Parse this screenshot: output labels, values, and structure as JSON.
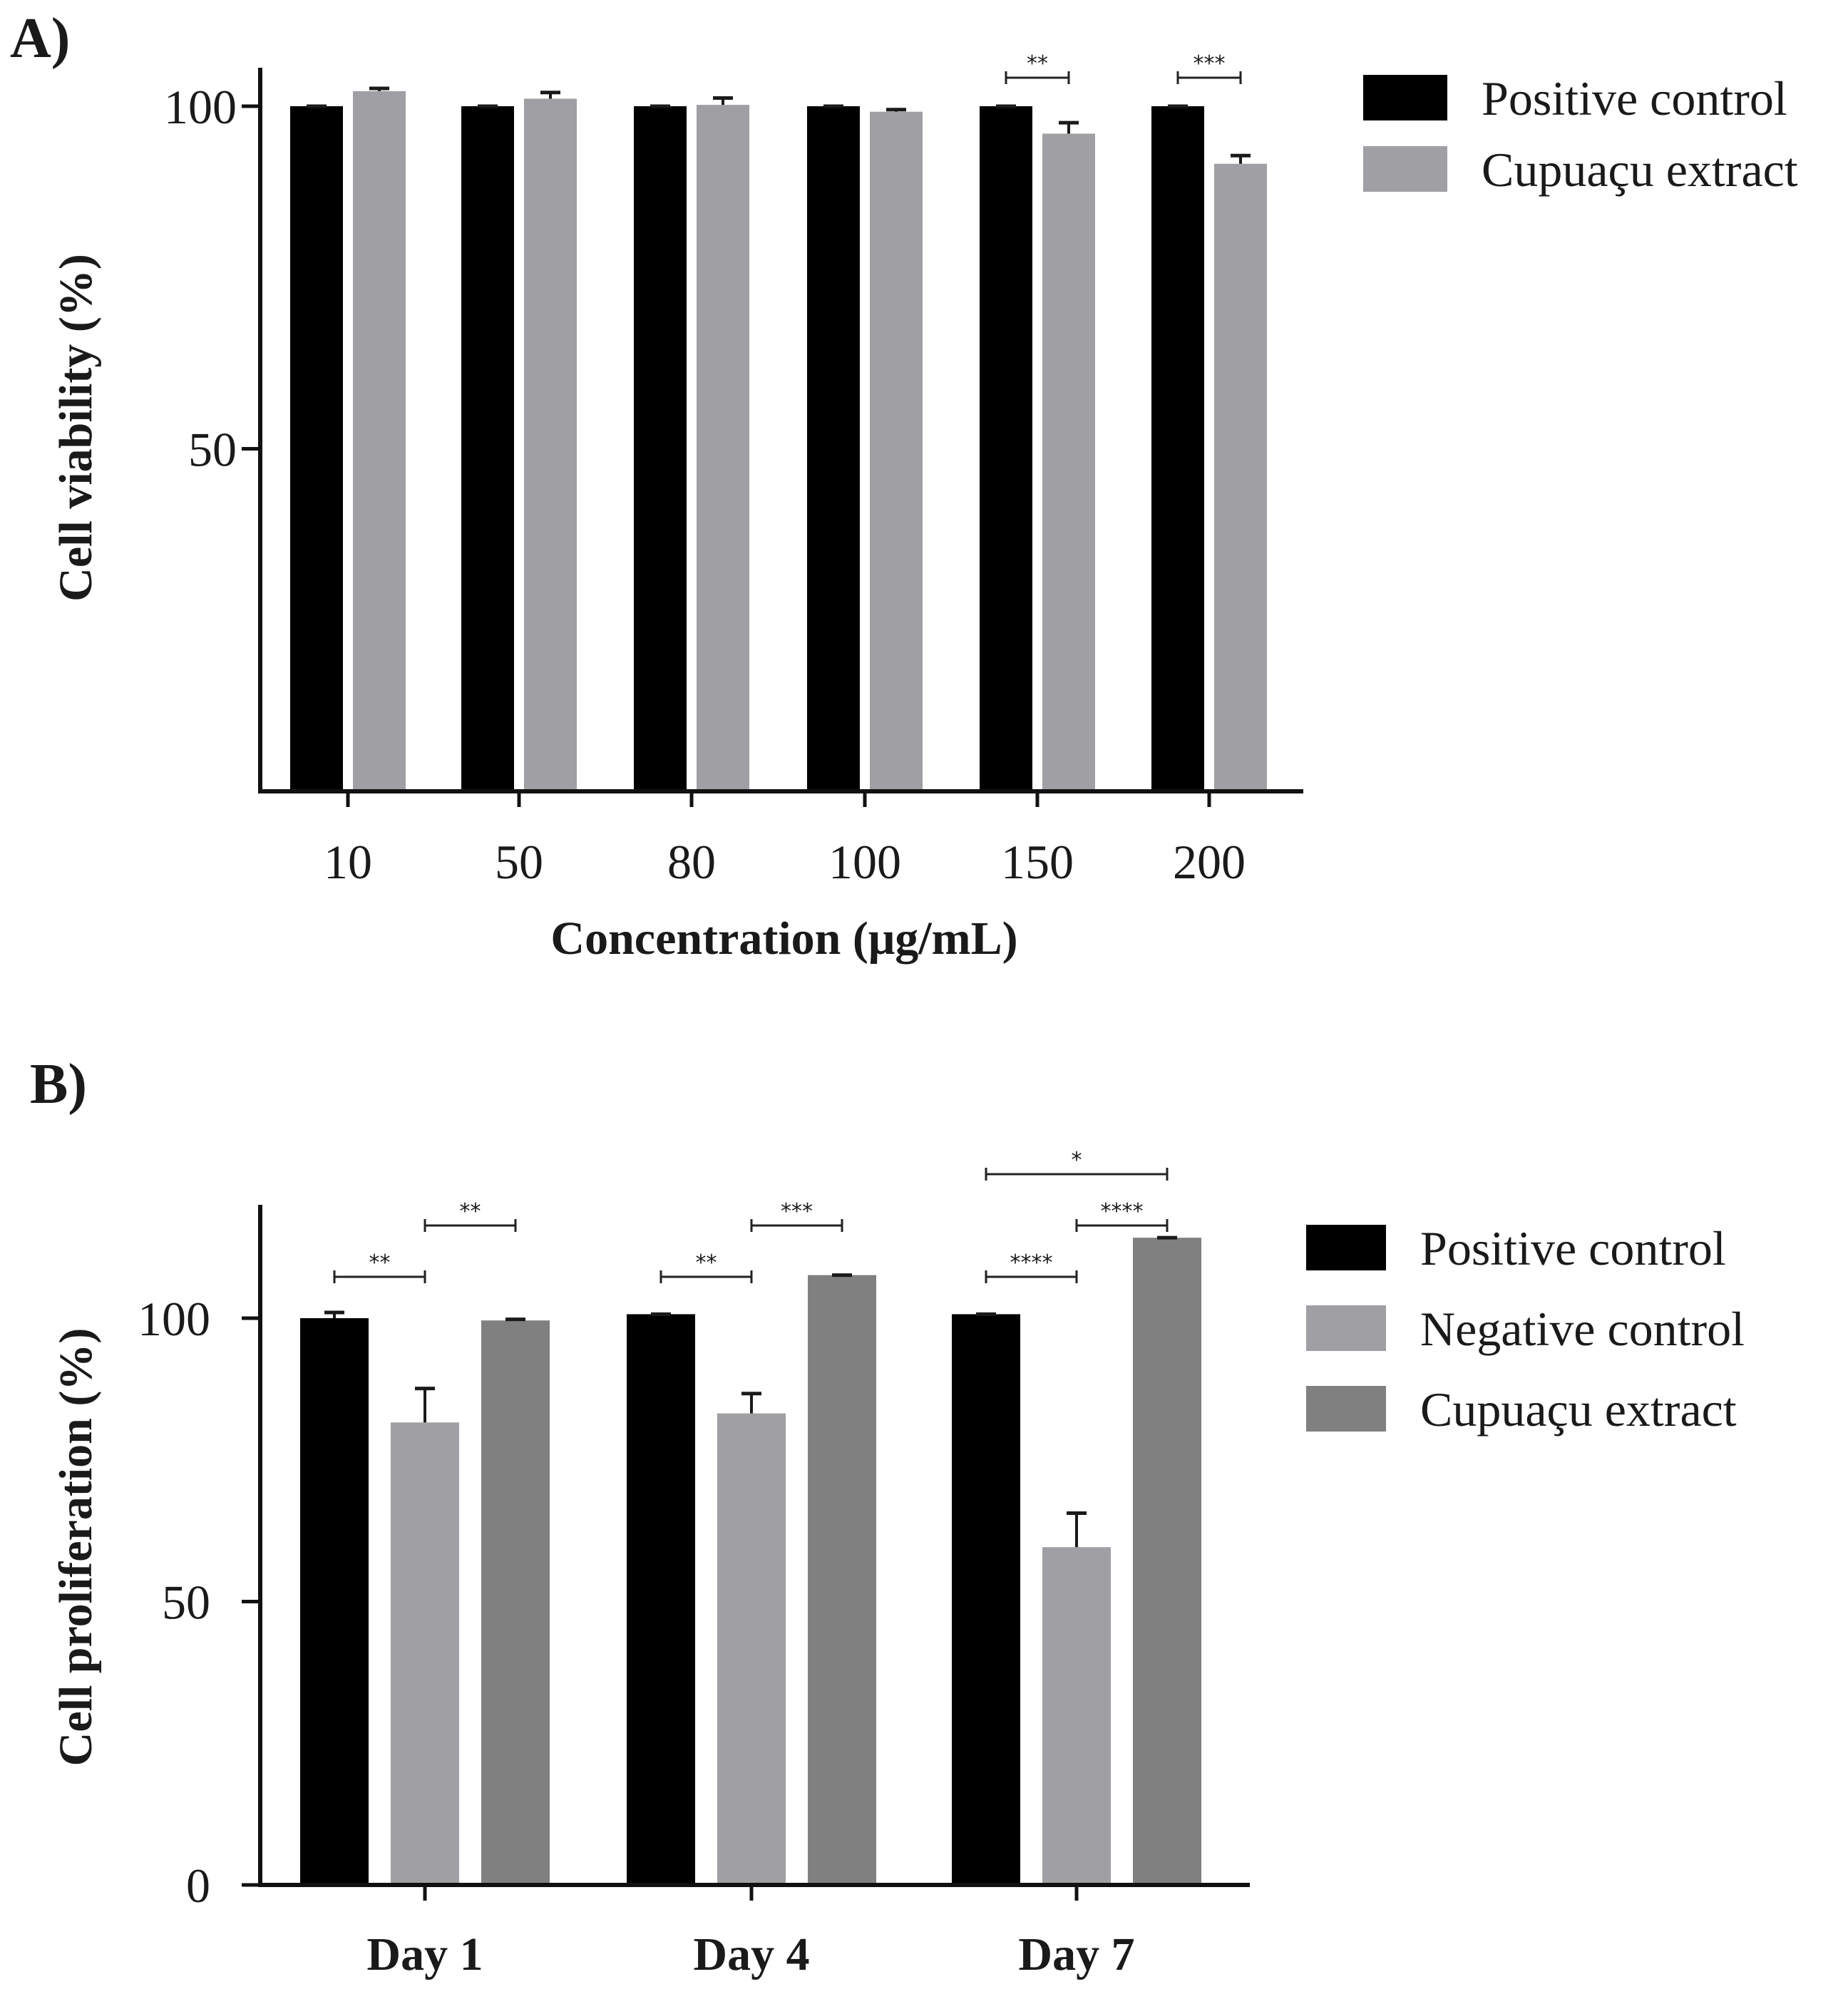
{
  "chart_data": [
    {
      "type": "bar",
      "panel_label": "A)",
      "xlabel": "Concentration (μg/mL)",
      "ylabel": "Cell viability (%)",
      "ylim": [
        0,
        105
      ],
      "yticks": [
        50,
        100
      ],
      "categories": [
        "10",
        "50",
        "80",
        "100",
        "150",
        "200"
      ],
      "series": [
        {
          "name": "Positive control",
          "color": "#000000",
          "values": [
            100,
            100,
            100,
            100,
            100,
            100
          ],
          "errors": [
            0,
            0,
            0,
            0,
            0,
            0
          ]
        },
        {
          "name": "Cupuaçu extract",
          "color": "#a0a0a4",
          "values": [
            102.2,
            101.1,
            100.2,
            99.2,
            96.0,
            91.6
          ],
          "errors": [
            0.4,
            0.9,
            1.0,
            0.3,
            1.6,
            1.2
          ]
        }
      ],
      "significance": [
        {
          "category_index": 4,
          "from_series": 0,
          "to_series": 1,
          "label": "**",
          "level": 0
        },
        {
          "category_index": 5,
          "from_series": 0,
          "to_series": 1,
          "label": "***",
          "level": 0
        }
      ],
      "legend": [
        "Positive control",
        "Cupuaçu extract"
      ]
    },
    {
      "type": "bar",
      "panel_label": "B)",
      "xlabel": "",
      "ylabel": "Cell proliferation (%)",
      "ylim": [
        0,
        120
      ],
      "yticks": [
        0,
        50,
        100
      ],
      "categories": [
        "Day 1",
        "Day 4",
        "Day 7"
      ],
      "series": [
        {
          "name": "Positive control",
          "color": "#000000",
          "values": [
            100,
            100.7,
            100.7
          ],
          "errors": [
            1.0,
            0,
            0
          ]
        },
        {
          "name": "Negative control",
          "color": "#a0a0a4",
          "values": [
            81.6,
            83.2,
            59.6
          ],
          "errors": [
            6.0,
            3.5,
            6.0
          ]
        },
        {
          "name": "Cupuaçu extract",
          "color": "#808080",
          "values": [
            99.6,
            107.6,
            114.2
          ],
          "errors": [
            0.2,
            0,
            0
          ]
        }
      ],
      "significance": [
        {
          "category_index": 0,
          "from_series": 0,
          "to_series": 1,
          "label": "**",
          "level": 0
        },
        {
          "category_index": 0,
          "from_series": 1,
          "to_series": 2,
          "label": "**",
          "level": 1
        },
        {
          "category_index": 1,
          "from_series": 0,
          "to_series": 1,
          "label": "**",
          "level": 0
        },
        {
          "category_index": 1,
          "from_series": 1,
          "to_series": 2,
          "label": "***",
          "level": 1
        },
        {
          "category_index": 2,
          "from_series": 0,
          "to_series": 1,
          "label": "****",
          "level": 0
        },
        {
          "category_index": 2,
          "from_series": 1,
          "to_series": 2,
          "label": "****",
          "level": 1
        },
        {
          "category_index": 2,
          "from_series": 0,
          "to_series": 2,
          "label": "*",
          "level": 2
        }
      ],
      "legend": [
        "Positive control",
        "Negative control",
        "Cupuaçu extract"
      ]
    }
  ]
}
